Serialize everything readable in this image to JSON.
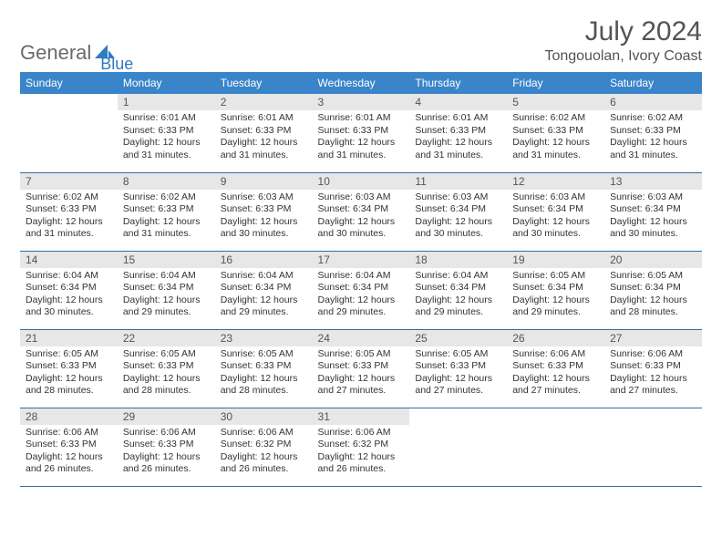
{
  "branding": {
    "text1": "General",
    "text2": "Blue",
    "icon_color": "#2f7bc1"
  },
  "header": {
    "month_title": "July 2024",
    "location": "Tongouolan, Ivory Coast"
  },
  "colors": {
    "header_bg": "#3a85c9",
    "header_text": "#ffffff",
    "daynum_bg": "#e7e7e7",
    "border": "#2f6fa8",
    "title_color": "#545454"
  },
  "weekdays": [
    "Sunday",
    "Monday",
    "Tuesday",
    "Wednesday",
    "Thursday",
    "Friday",
    "Saturday"
  ],
  "weeks": [
    [
      null,
      {
        "n": "1",
        "sr": "Sunrise: 6:01 AM",
        "ss": "Sunset: 6:33 PM",
        "dl": "Daylight: 12 hours and 31 minutes."
      },
      {
        "n": "2",
        "sr": "Sunrise: 6:01 AM",
        "ss": "Sunset: 6:33 PM",
        "dl": "Daylight: 12 hours and 31 minutes."
      },
      {
        "n": "3",
        "sr": "Sunrise: 6:01 AM",
        "ss": "Sunset: 6:33 PM",
        "dl": "Daylight: 12 hours and 31 minutes."
      },
      {
        "n": "4",
        "sr": "Sunrise: 6:01 AM",
        "ss": "Sunset: 6:33 PM",
        "dl": "Daylight: 12 hours and 31 minutes."
      },
      {
        "n": "5",
        "sr": "Sunrise: 6:02 AM",
        "ss": "Sunset: 6:33 PM",
        "dl": "Daylight: 12 hours and 31 minutes."
      },
      {
        "n": "6",
        "sr": "Sunrise: 6:02 AM",
        "ss": "Sunset: 6:33 PM",
        "dl": "Daylight: 12 hours and 31 minutes."
      }
    ],
    [
      {
        "n": "7",
        "sr": "Sunrise: 6:02 AM",
        "ss": "Sunset: 6:33 PM",
        "dl": "Daylight: 12 hours and 31 minutes."
      },
      {
        "n": "8",
        "sr": "Sunrise: 6:02 AM",
        "ss": "Sunset: 6:33 PM",
        "dl": "Daylight: 12 hours and 31 minutes."
      },
      {
        "n": "9",
        "sr": "Sunrise: 6:03 AM",
        "ss": "Sunset: 6:33 PM",
        "dl": "Daylight: 12 hours and 30 minutes."
      },
      {
        "n": "10",
        "sr": "Sunrise: 6:03 AM",
        "ss": "Sunset: 6:34 PM",
        "dl": "Daylight: 12 hours and 30 minutes."
      },
      {
        "n": "11",
        "sr": "Sunrise: 6:03 AM",
        "ss": "Sunset: 6:34 PM",
        "dl": "Daylight: 12 hours and 30 minutes."
      },
      {
        "n": "12",
        "sr": "Sunrise: 6:03 AM",
        "ss": "Sunset: 6:34 PM",
        "dl": "Daylight: 12 hours and 30 minutes."
      },
      {
        "n": "13",
        "sr": "Sunrise: 6:03 AM",
        "ss": "Sunset: 6:34 PM",
        "dl": "Daylight: 12 hours and 30 minutes."
      }
    ],
    [
      {
        "n": "14",
        "sr": "Sunrise: 6:04 AM",
        "ss": "Sunset: 6:34 PM",
        "dl": "Daylight: 12 hours and 30 minutes."
      },
      {
        "n": "15",
        "sr": "Sunrise: 6:04 AM",
        "ss": "Sunset: 6:34 PM",
        "dl": "Daylight: 12 hours and 29 minutes."
      },
      {
        "n": "16",
        "sr": "Sunrise: 6:04 AM",
        "ss": "Sunset: 6:34 PM",
        "dl": "Daylight: 12 hours and 29 minutes."
      },
      {
        "n": "17",
        "sr": "Sunrise: 6:04 AM",
        "ss": "Sunset: 6:34 PM",
        "dl": "Daylight: 12 hours and 29 minutes."
      },
      {
        "n": "18",
        "sr": "Sunrise: 6:04 AM",
        "ss": "Sunset: 6:34 PM",
        "dl": "Daylight: 12 hours and 29 minutes."
      },
      {
        "n": "19",
        "sr": "Sunrise: 6:05 AM",
        "ss": "Sunset: 6:34 PM",
        "dl": "Daylight: 12 hours and 29 minutes."
      },
      {
        "n": "20",
        "sr": "Sunrise: 6:05 AM",
        "ss": "Sunset: 6:34 PM",
        "dl": "Daylight: 12 hours and 28 minutes."
      }
    ],
    [
      {
        "n": "21",
        "sr": "Sunrise: 6:05 AM",
        "ss": "Sunset: 6:33 PM",
        "dl": "Daylight: 12 hours and 28 minutes."
      },
      {
        "n": "22",
        "sr": "Sunrise: 6:05 AM",
        "ss": "Sunset: 6:33 PM",
        "dl": "Daylight: 12 hours and 28 minutes."
      },
      {
        "n": "23",
        "sr": "Sunrise: 6:05 AM",
        "ss": "Sunset: 6:33 PM",
        "dl": "Daylight: 12 hours and 28 minutes."
      },
      {
        "n": "24",
        "sr": "Sunrise: 6:05 AM",
        "ss": "Sunset: 6:33 PM",
        "dl": "Daylight: 12 hours and 27 minutes."
      },
      {
        "n": "25",
        "sr": "Sunrise: 6:05 AM",
        "ss": "Sunset: 6:33 PM",
        "dl": "Daylight: 12 hours and 27 minutes."
      },
      {
        "n": "26",
        "sr": "Sunrise: 6:06 AM",
        "ss": "Sunset: 6:33 PM",
        "dl": "Daylight: 12 hours and 27 minutes."
      },
      {
        "n": "27",
        "sr": "Sunrise: 6:06 AM",
        "ss": "Sunset: 6:33 PM",
        "dl": "Daylight: 12 hours and 27 minutes."
      }
    ],
    [
      {
        "n": "28",
        "sr": "Sunrise: 6:06 AM",
        "ss": "Sunset: 6:33 PM",
        "dl": "Daylight: 12 hours and 26 minutes."
      },
      {
        "n": "29",
        "sr": "Sunrise: 6:06 AM",
        "ss": "Sunset: 6:33 PM",
        "dl": "Daylight: 12 hours and 26 minutes."
      },
      {
        "n": "30",
        "sr": "Sunrise: 6:06 AM",
        "ss": "Sunset: 6:32 PM",
        "dl": "Daylight: 12 hours and 26 minutes."
      },
      {
        "n": "31",
        "sr": "Sunrise: 6:06 AM",
        "ss": "Sunset: 6:32 PM",
        "dl": "Daylight: 12 hours and 26 minutes."
      },
      null,
      null,
      null
    ]
  ]
}
